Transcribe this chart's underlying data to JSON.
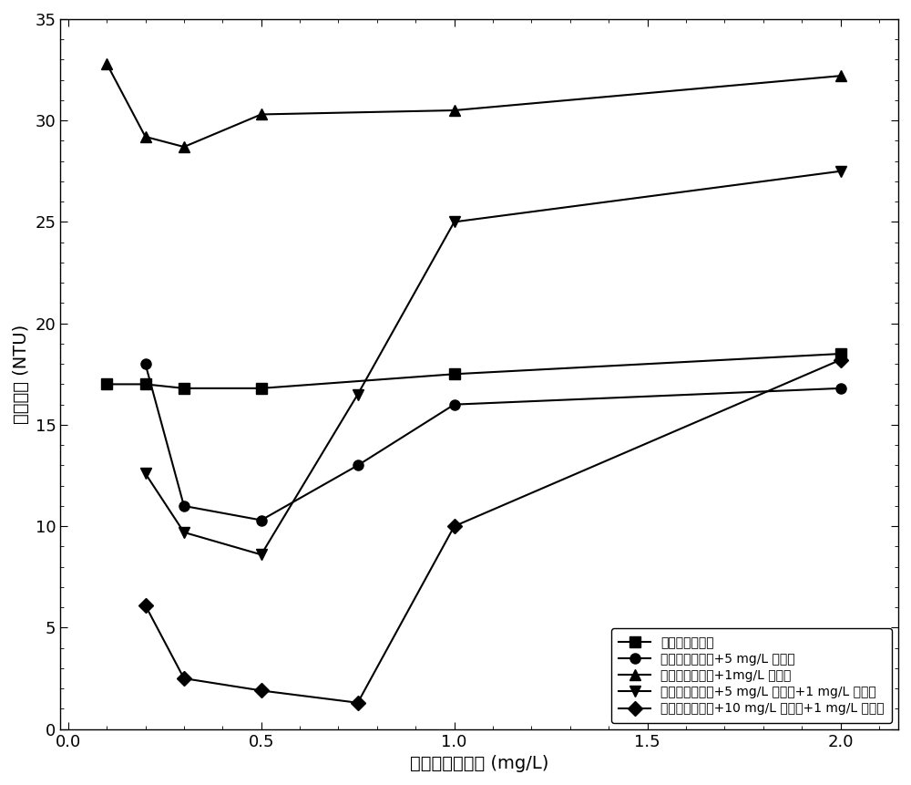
{
  "x_values": [
    0.1,
    0.2,
    0.3,
    0.5,
    0.75,
    1.0,
    2.0
  ],
  "series": [
    {
      "label": "改性淀粉絮凝剂",
      "marker": "s",
      "y": [
        17.0,
        17.0,
        16.8,
        16.8,
        null,
        17.5,
        18.5
      ]
    },
    {
      "label": "改性淀粉絮凝剂+5 mg/L 聚硅酸",
      "marker": "o",
      "y": [
        null,
        18.0,
        11.0,
        10.3,
        13.0,
        16.0,
        16.8
      ]
    },
    {
      "label": "改性淀粉絮凝剂+1mg/L 高岭土",
      "marker": "^",
      "y": [
        32.8,
        29.2,
        28.7,
        30.3,
        null,
        30.5,
        32.2
      ]
    },
    {
      "label": "改性淀粉絮凝剂+5 mg/L 聚硅酸+1 mg/L 高岭土",
      "marker": "v",
      "y": [
        null,
        12.6,
        9.7,
        8.6,
        16.5,
        25.0,
        27.5
      ]
    },
    {
      "label": "改性淀粉絮凝剂+10 mg/L 聚硅酸+1 mg/L 高岭土",
      "marker": "D",
      "y": [
        null,
        6.1,
        2.5,
        1.9,
        1.3,
        10.0,
        18.2
      ]
    }
  ],
  "xlabel": "改性淀粉絮凝剂 (mg/L)",
  "ylabel": "剩余浊度 (NTU)",
  "xlim": [
    -0.02,
    2.15
  ],
  "ylim": [
    0,
    35
  ],
  "xticks": [
    0.0,
    0.5,
    1.0,
    1.5,
    2.0
  ],
  "yticks": [
    0,
    5,
    10,
    15,
    20,
    25,
    30,
    35
  ],
  "color": "black",
  "linewidth": 1.5,
  "markersize": 8,
  "figsize": [
    10.0,
    8.61
  ],
  "dpi": 100
}
